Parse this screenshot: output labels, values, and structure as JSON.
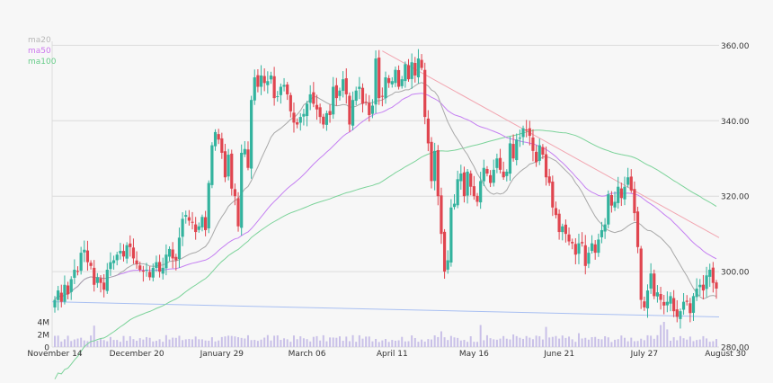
{
  "chart_data": {
    "type": "candlestick",
    "price_axis": {
      "ticks": [
        280,
        300,
        320,
        340,
        360
      ],
      "tick_labels": [
        "280.00",
        "300.00",
        "320.00",
        "340.00",
        "360.00"
      ],
      "range": [
        280,
        362
      ],
      "side": "right"
    },
    "volume_axis": {
      "ticks": [
        0,
        2,
        4
      ],
      "tick_labels": [
        "0",
        "2M",
        "4M"
      ],
      "range": [
        0,
        6
      ],
      "unit": "M"
    },
    "x_axis": {
      "labels": [
        "November 14",
        "December 20",
        "January 29",
        "March 06",
        "April 11",
        "May 16",
        "June 21",
        "July 27",
        "August 30"
      ],
      "label_index": [
        0,
        25,
        51,
        77,
        103,
        128,
        154,
        180,
        203
      ]
    },
    "grid": true,
    "legend": {
      "placement": "top-left",
      "items": [
        {
          "label": "ma20",
          "color": "#b8b8b8"
        },
        {
          "label": "ma50",
          "color": "#cc77ee"
        },
        {
          "label": "ma100",
          "color": "#66cc88"
        }
      ]
    },
    "colors": {
      "up": "#33b39e",
      "down": "#e0454f",
      "ma20": "#a8a8a8",
      "ma50": "#c580f2",
      "ma100": "#7cd39a",
      "trend_down": "#f2a5b0",
      "trend_flat": "#a8bff2",
      "volume": "#c9c0e8",
      "grid": "#dcdcdc"
    },
    "closes": [
      292.5,
      295.0,
      292.0,
      296.5,
      294.0,
      298.0,
      300.5,
      300.0,
      305.0,
      305.8,
      302.5,
      301.5,
      296.5,
      298.5,
      297.0,
      295.2,
      300.5,
      302.5,
      303.0,
      304.5,
      305.5,
      304.0,
      307.0,
      306.5,
      303.5,
      302.0,
      300.5,
      300.0,
      300.5,
      298.5,
      301.0,
      302.5,
      300.0,
      301.0,
      304.5,
      306.0,
      303.5,
      303.0,
      309.0,
      314.0,
      315.0,
      313.5,
      313.0,
      310.5,
      312.0,
      314.5,
      311.0,
      323.5,
      333.5,
      337.0,
      335.0,
      331.5,
      325.0,
      331.0,
      322.0,
      320.0,
      312.0,
      331.5,
      332.5,
      327.5,
      345.5,
      351.5,
      349.0,
      352.0,
      350.0,
      350.5,
      352.0,
      346.0,
      346.5,
      349.0,
      349.5,
      347.0,
      342.5,
      339.5,
      339.0,
      341.0,
      341.8,
      344.5,
      347.0,
      344.5,
      343.0,
      341.0,
      339.0,
      342.0,
      341.5,
      349.0,
      346.0,
      348.0,
      351.0,
      347.0,
      339.0,
      345.5,
      348.0,
      349.0,
      344.5,
      345.0,
      341.5,
      344.0,
      356.5,
      346.0,
      346.5,
      351.5,
      350.0,
      350.5,
      353.5,
      349.0,
      351.0,
      355.0,
      351.0,
      355.5,
      352.0,
      356.5,
      354.0,
      341.0,
      334.0,
      324.0,
      332.0,
      320.0,
      310.0,
      300.0,
      303.0,
      317.0,
      318.0,
      324.5,
      326.0,
      320.0,
      326.5,
      322.5,
      320.0,
      318.5,
      324.0,
      327.5,
      326.0,
      323.5,
      327.0,
      330.0,
      327.0,
      325.0,
      326.5,
      334.0,
      330.0,
      335.0,
      335.5,
      338.0,
      337.5,
      336.0,
      332.0,
      329.0,
      333.5,
      331.0,
      325.0,
      323.5,
      317.0,
      315.0,
      310.5,
      312.0,
      310.0,
      308.0,
      307.5,
      304.5,
      307.5,
      307.5,
      301.5,
      305.0,
      307.5,
      305.0,
      308.5,
      311.0,
      312.5,
      320.5,
      317.5,
      318.5,
      322.5,
      319.5,
      322.5,
      325.0,
      321.5,
      315.5,
      306.5,
      292.5,
      290.5,
      295.0,
      299.5,
      293.5,
      294.5,
      292.5,
      291.0,
      292.0,
      293.5,
      289.5,
      288.0,
      289.5,
      292.0,
      292.0,
      289.0,
      293.5,
      295.5,
      296.5,
      295.0,
      299.0,
      300.5,
      297.0,
      295.5
    ]
  }
}
